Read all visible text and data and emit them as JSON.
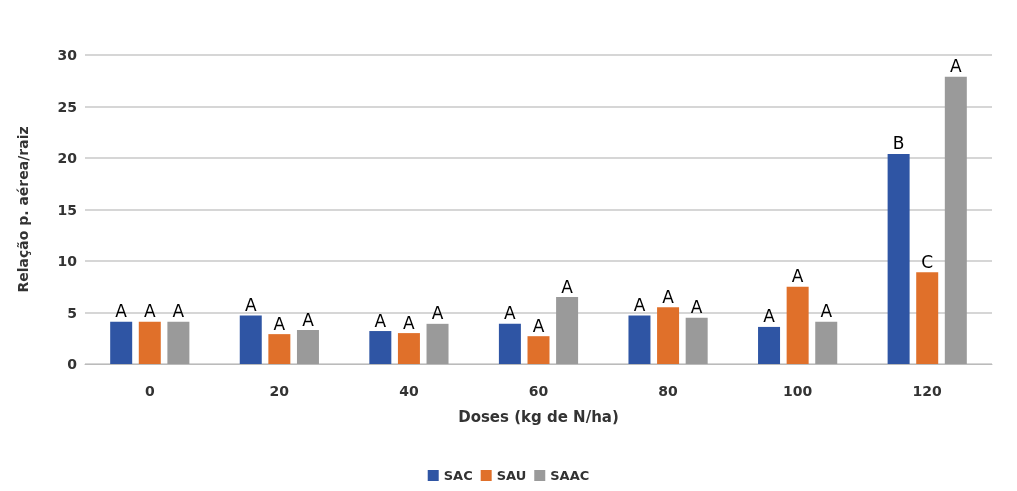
{
  "chart_data": {
    "type": "bar",
    "xlabel": "Doses (kg de N/ha)",
    "ylabel": "Relação p. aérea/raiz",
    "categories": [
      "0",
      "20",
      "40",
      "60",
      "80",
      "100",
      "120"
    ],
    "series": [
      {
        "name": "SAC",
        "color": "#2f55a4",
        "values": [
          4.1,
          4.7,
          3.2,
          3.9,
          4.7,
          3.6,
          20.4
        ],
        "value_labels": [
          "A",
          "A",
          "A",
          "A",
          "A",
          "A",
          "B"
        ]
      },
      {
        "name": "SAU",
        "color": "#e0702a",
        "values": [
          4.1,
          2.9,
          3.0,
          2.7,
          5.5,
          7.5,
          8.9
        ],
        "value_labels": [
          "A",
          "A",
          "A",
          "A",
          "A",
          "A",
          "C"
        ]
      },
      {
        "name": "SAAC",
        "color": "#9a9a9a",
        "values": [
          4.1,
          3.3,
          3.9,
          6.5,
          4.5,
          4.1,
          27.9
        ],
        "value_labels": [
          "A",
          "A",
          "A",
          "A",
          "A",
          "A",
          "A"
        ]
      }
    ],
    "ylim": [
      0,
      30
    ],
    "yticks": [
      0,
      5,
      10,
      15,
      20,
      25,
      30
    ],
    "grid": "y",
    "legend": "bottom"
  }
}
